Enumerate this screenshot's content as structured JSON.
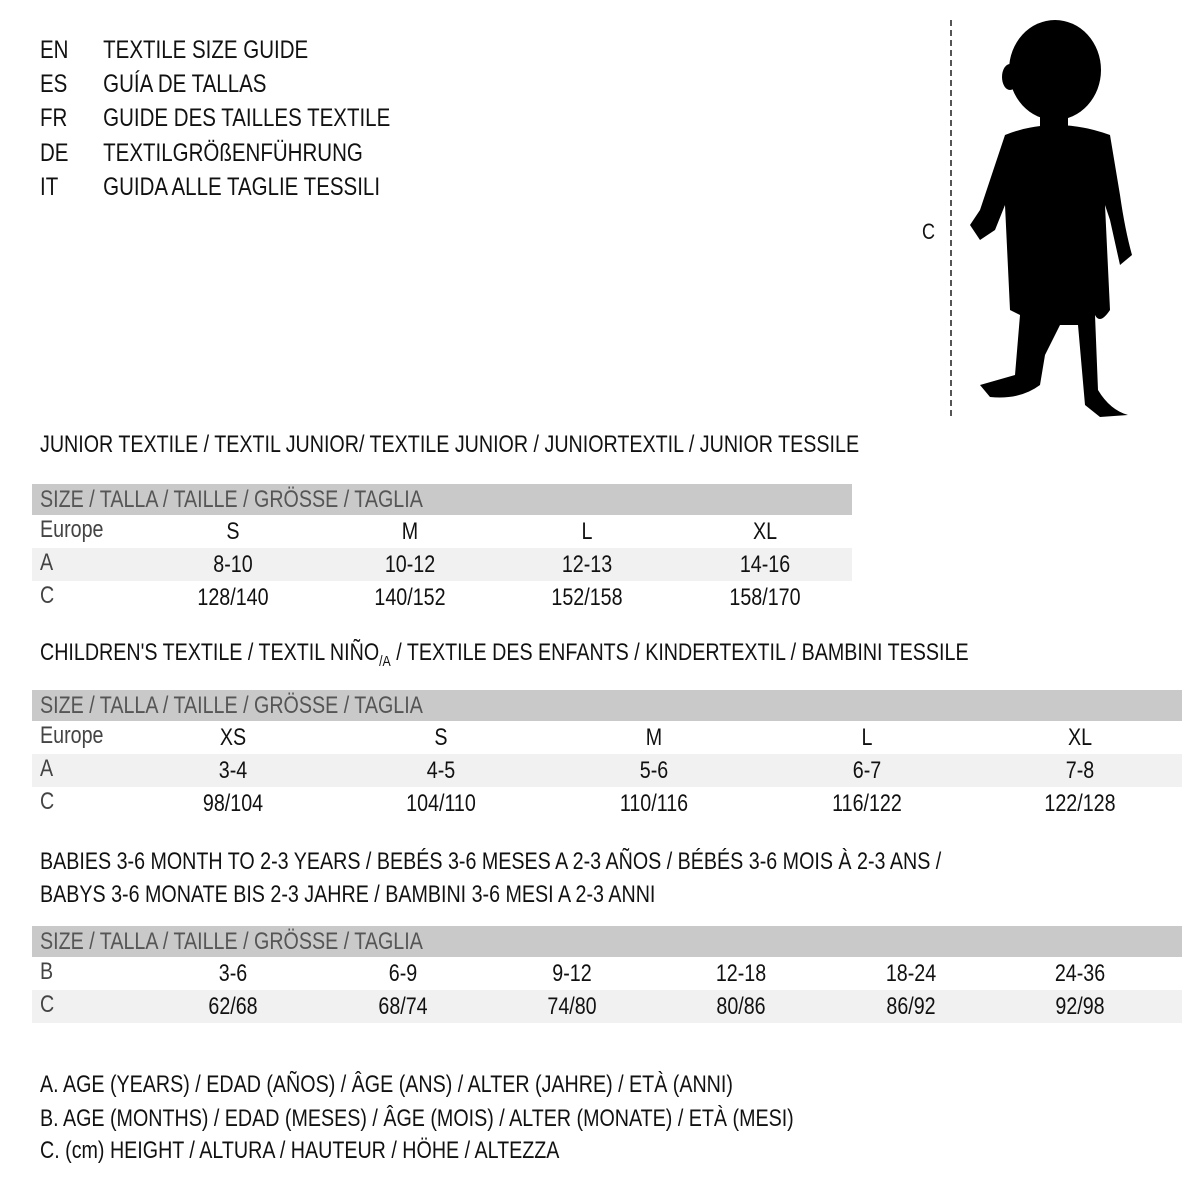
{
  "languages": [
    {
      "code": "EN",
      "text": "TEXTILE SIZE GUIDE"
    },
    {
      "code": "ES",
      "text": "GUÍA DE TALLAS"
    },
    {
      "code": "FR",
      "text": "GUIDE DES TAILLES TEXTILE"
    },
    {
      "code": "DE",
      "text": "TEXTILGRÖßENFÜHRUNG"
    },
    {
      "code": "IT",
      "text": "GUIDA ALLE TAGLIE TESSILI"
    }
  ],
  "figure": {
    "measure_label": "C",
    "icon": "child-silhouette"
  },
  "header_label": "SIZE / TALLA / TAILLE / GRÖSSE / TAGLIA",
  "junior": {
    "title": "JUNIOR TEXTILE / TEXTIL JUNIOR/ TEXTILE JUNIOR / JUNIORTEXTIL / JUNIOR TESSILE",
    "rows": [
      {
        "label": "Europe",
        "values": [
          "S",
          "M",
          "L",
          "XL"
        ]
      },
      {
        "label": "A",
        "values": [
          "8-10",
          "10-12",
          "12-13",
          "14-16"
        ]
      },
      {
        "label": "C",
        "values": [
          "128/140",
          "140/152",
          "152/158",
          "158/170"
        ]
      }
    ]
  },
  "children": {
    "title": "CHILDREN'S TEXTILE / TEXTIL NIÑO",
    "title_sub": "/A",
    "title_rest": " / TEXTILE DES ENFANTS / KINDERTEXTIL / BAMBINI TESSILE",
    "rows": [
      {
        "label": "Europe",
        "values": [
          "XS",
          "S",
          "M",
          "L",
          "XL"
        ]
      },
      {
        "label": "A",
        "values": [
          "3-4",
          "4-5",
          "5-6",
          "6-7",
          "7-8"
        ]
      },
      {
        "label": "C",
        "values": [
          "98/104",
          "104/110",
          "110/116",
          "116/122",
          "122/128"
        ]
      }
    ]
  },
  "babies": {
    "title_line1": "BABIES 3-6 MONTH TO 2-3 YEARS / BEBÉS 3-6 MESES A 2-3 AÑOS / BÉBÉS 3-6 MOIS À 2-3 ANS /",
    "title_line2": "BABYS 3-6 MONATE BIS 2-3 JAHRE / BAMBINI 3-6 MESI A 2-3 ANNI",
    "rows": [
      {
        "label": "B",
        "values": [
          "3-6",
          "6-9",
          "9-12",
          "12-18",
          "18-24",
          "24-36"
        ]
      },
      {
        "label": "C",
        "values": [
          "62/68",
          "68/74",
          "74/80",
          "80/86",
          "86/92",
          "92/98"
        ]
      }
    ]
  },
  "legend": [
    "A. AGE (YEARS) / EDAD (AÑOS) / ÂGE (ANS) / ALTER (JAHRE) / ETÀ (ANNI)",
    "B. AGE (MONTHS) / EDAD (MESES) / ÂGE (MOIS) / ALTER (MONATE) / ETÀ (MESI)",
    "C. (cm) HEIGHT / ALTURA / HAUTEUR / HÖHE / ALTEZZA"
  ]
}
